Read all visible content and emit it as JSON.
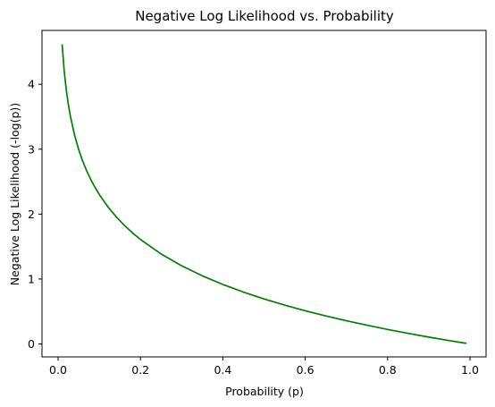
{
  "chart_data": {
    "type": "line",
    "title": "Negative Log Likelihood vs. Probability",
    "xlabel": "Probability (p)",
    "ylabel": "Negative Log Likelihood (-log(p))",
    "xlim": [
      -0.039,
      1.039
    ],
    "ylim": [
      -0.2,
      4.83
    ],
    "grid": false,
    "legend": "none",
    "x_ticks": [
      0.0,
      0.2,
      0.4,
      0.6,
      0.8,
      1.0
    ],
    "x_tick_labels": [
      "0.0",
      "0.2",
      "0.4",
      "0.6",
      "0.8",
      "1.0"
    ],
    "y_ticks": [
      0,
      1,
      2,
      3,
      4
    ],
    "y_tick_labels": [
      "0",
      "1",
      "2",
      "3",
      "4"
    ],
    "series": [
      {
        "color": "#008000",
        "x": [
          0.01,
          0.015,
          0.02,
          0.025,
          0.03,
          0.04,
          0.05,
          0.06,
          0.07,
          0.08,
          0.09,
          0.1,
          0.12,
          0.14,
          0.16,
          0.18,
          0.2,
          0.25,
          0.3,
          0.35,
          0.4,
          0.45,
          0.5,
          0.55,
          0.6,
          0.65,
          0.7,
          0.75,
          0.8,
          0.85,
          0.9,
          0.95,
          0.99
        ],
        "y": [
          4.605,
          4.2,
          3.912,
          3.689,
          3.507,
          3.219,
          2.996,
          2.813,
          2.659,
          2.526,
          2.408,
          2.303,
          2.12,
          1.966,
          1.833,
          1.715,
          1.609,
          1.386,
          1.204,
          1.05,
          0.916,
          0.799,
          0.693,
          0.598,
          0.511,
          0.431,
          0.357,
          0.288,
          0.223,
          0.163,
          0.105,
          0.051,
          0.01
        ]
      }
    ]
  }
}
